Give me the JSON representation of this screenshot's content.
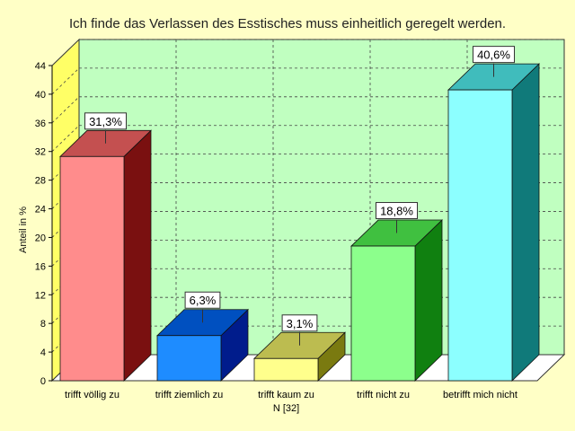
{
  "chart_data": {
    "type": "bar",
    "title": "Ich finde das Verlassen des Esstisches muss einheitlich geregelt werden.",
    "xlabel": "",
    "ylabel": "Anteil in %",
    "categories": [
      "trifft völlig zu",
      "trifft ziemlich zu",
      "trifft kaum zu",
      "trifft nicht zu",
      "betrifft mich nicht"
    ],
    "values": [
      31.3,
      6.3,
      3.1,
      18.8,
      40.6
    ],
    "data_labels": [
      "31,3%",
      "6,3%",
      "3,1%",
      "18,8%",
      "40,6%"
    ],
    "n_label": "N [32]",
    "ylim": [
      0,
      44
    ],
    "yticks": [
      0,
      4,
      8,
      12,
      16,
      20,
      24,
      28,
      32,
      36,
      40,
      44
    ],
    "grid": true,
    "bar_colors": [
      {
        "front": "#ff8c8c",
        "top": "#c45050",
        "side": "#7a1010"
      },
      {
        "front": "#1e8cff",
        "top": "#0050c0",
        "side": "#001c8c"
      },
      {
        "front": "#ffff8c",
        "top": "#bcbc50",
        "side": "#7a7a10"
      },
      {
        "front": "#8cff8c",
        "top": "#40c040",
        "side": "#108010"
      },
      {
        "front": "#8cffff",
        "top": "#40bcbc",
        "side": "#107a7a"
      }
    ],
    "plot_background": "#c0ffc0",
    "wall_color": "#ffff66"
  }
}
